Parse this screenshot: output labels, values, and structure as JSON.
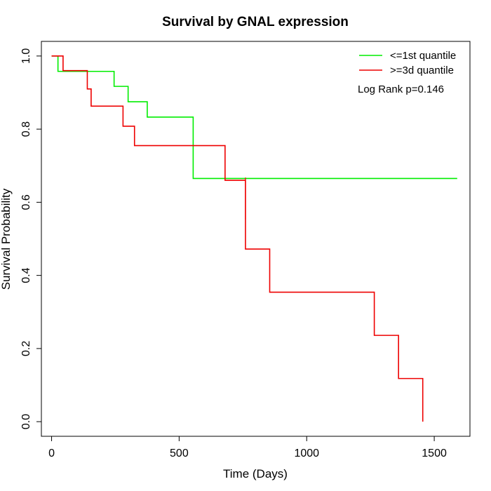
{
  "chart_data": {
    "type": "line",
    "title": "Survival by GNAL expression",
    "xlabel": "Time (Days)",
    "ylabel": "Survival Probability",
    "xlim": [
      -40,
      1640
    ],
    "ylim": [
      -0.04,
      1.04
    ],
    "x_ticks": [
      0,
      500,
      1000,
      1500
    ],
    "y_ticks": [
      0.0,
      0.2,
      0.4,
      0.6,
      0.8,
      1.0
    ],
    "x_tick_labels": [
      "0",
      "500",
      "1000",
      "1500"
    ],
    "y_tick_labels": [
      "0.0",
      "0.2",
      "0.4",
      "0.6",
      "0.8",
      "1.0"
    ],
    "grid": false,
    "legend_position": "top-right",
    "annotation": "Log Rank p=0.146",
    "series": [
      {
        "name": "<=1st quantile",
        "color": "#00ee00",
        "step": true,
        "x": [
          0,
          25,
          245,
          300,
          375,
          555,
          1590
        ],
        "y": [
          1.0,
          0.958,
          0.917,
          0.875,
          0.833,
          0.665,
          0.665
        ]
      },
      {
        "name": ">=3d quantile",
        "color": "#ee0000",
        "step": true,
        "x": [
          0,
          45,
          140,
          155,
          280,
          325,
          680,
          760,
          855,
          1265,
          1360,
          1455,
          1455
        ],
        "y": [
          1.0,
          0.96,
          0.91,
          0.863,
          0.808,
          0.755,
          0.66,
          0.472,
          0.354,
          0.236,
          0.118,
          0.118,
          0.0
        ],
        "censor_x": [
          760
        ],
        "censor_y": [
          0.66
        ]
      }
    ]
  }
}
